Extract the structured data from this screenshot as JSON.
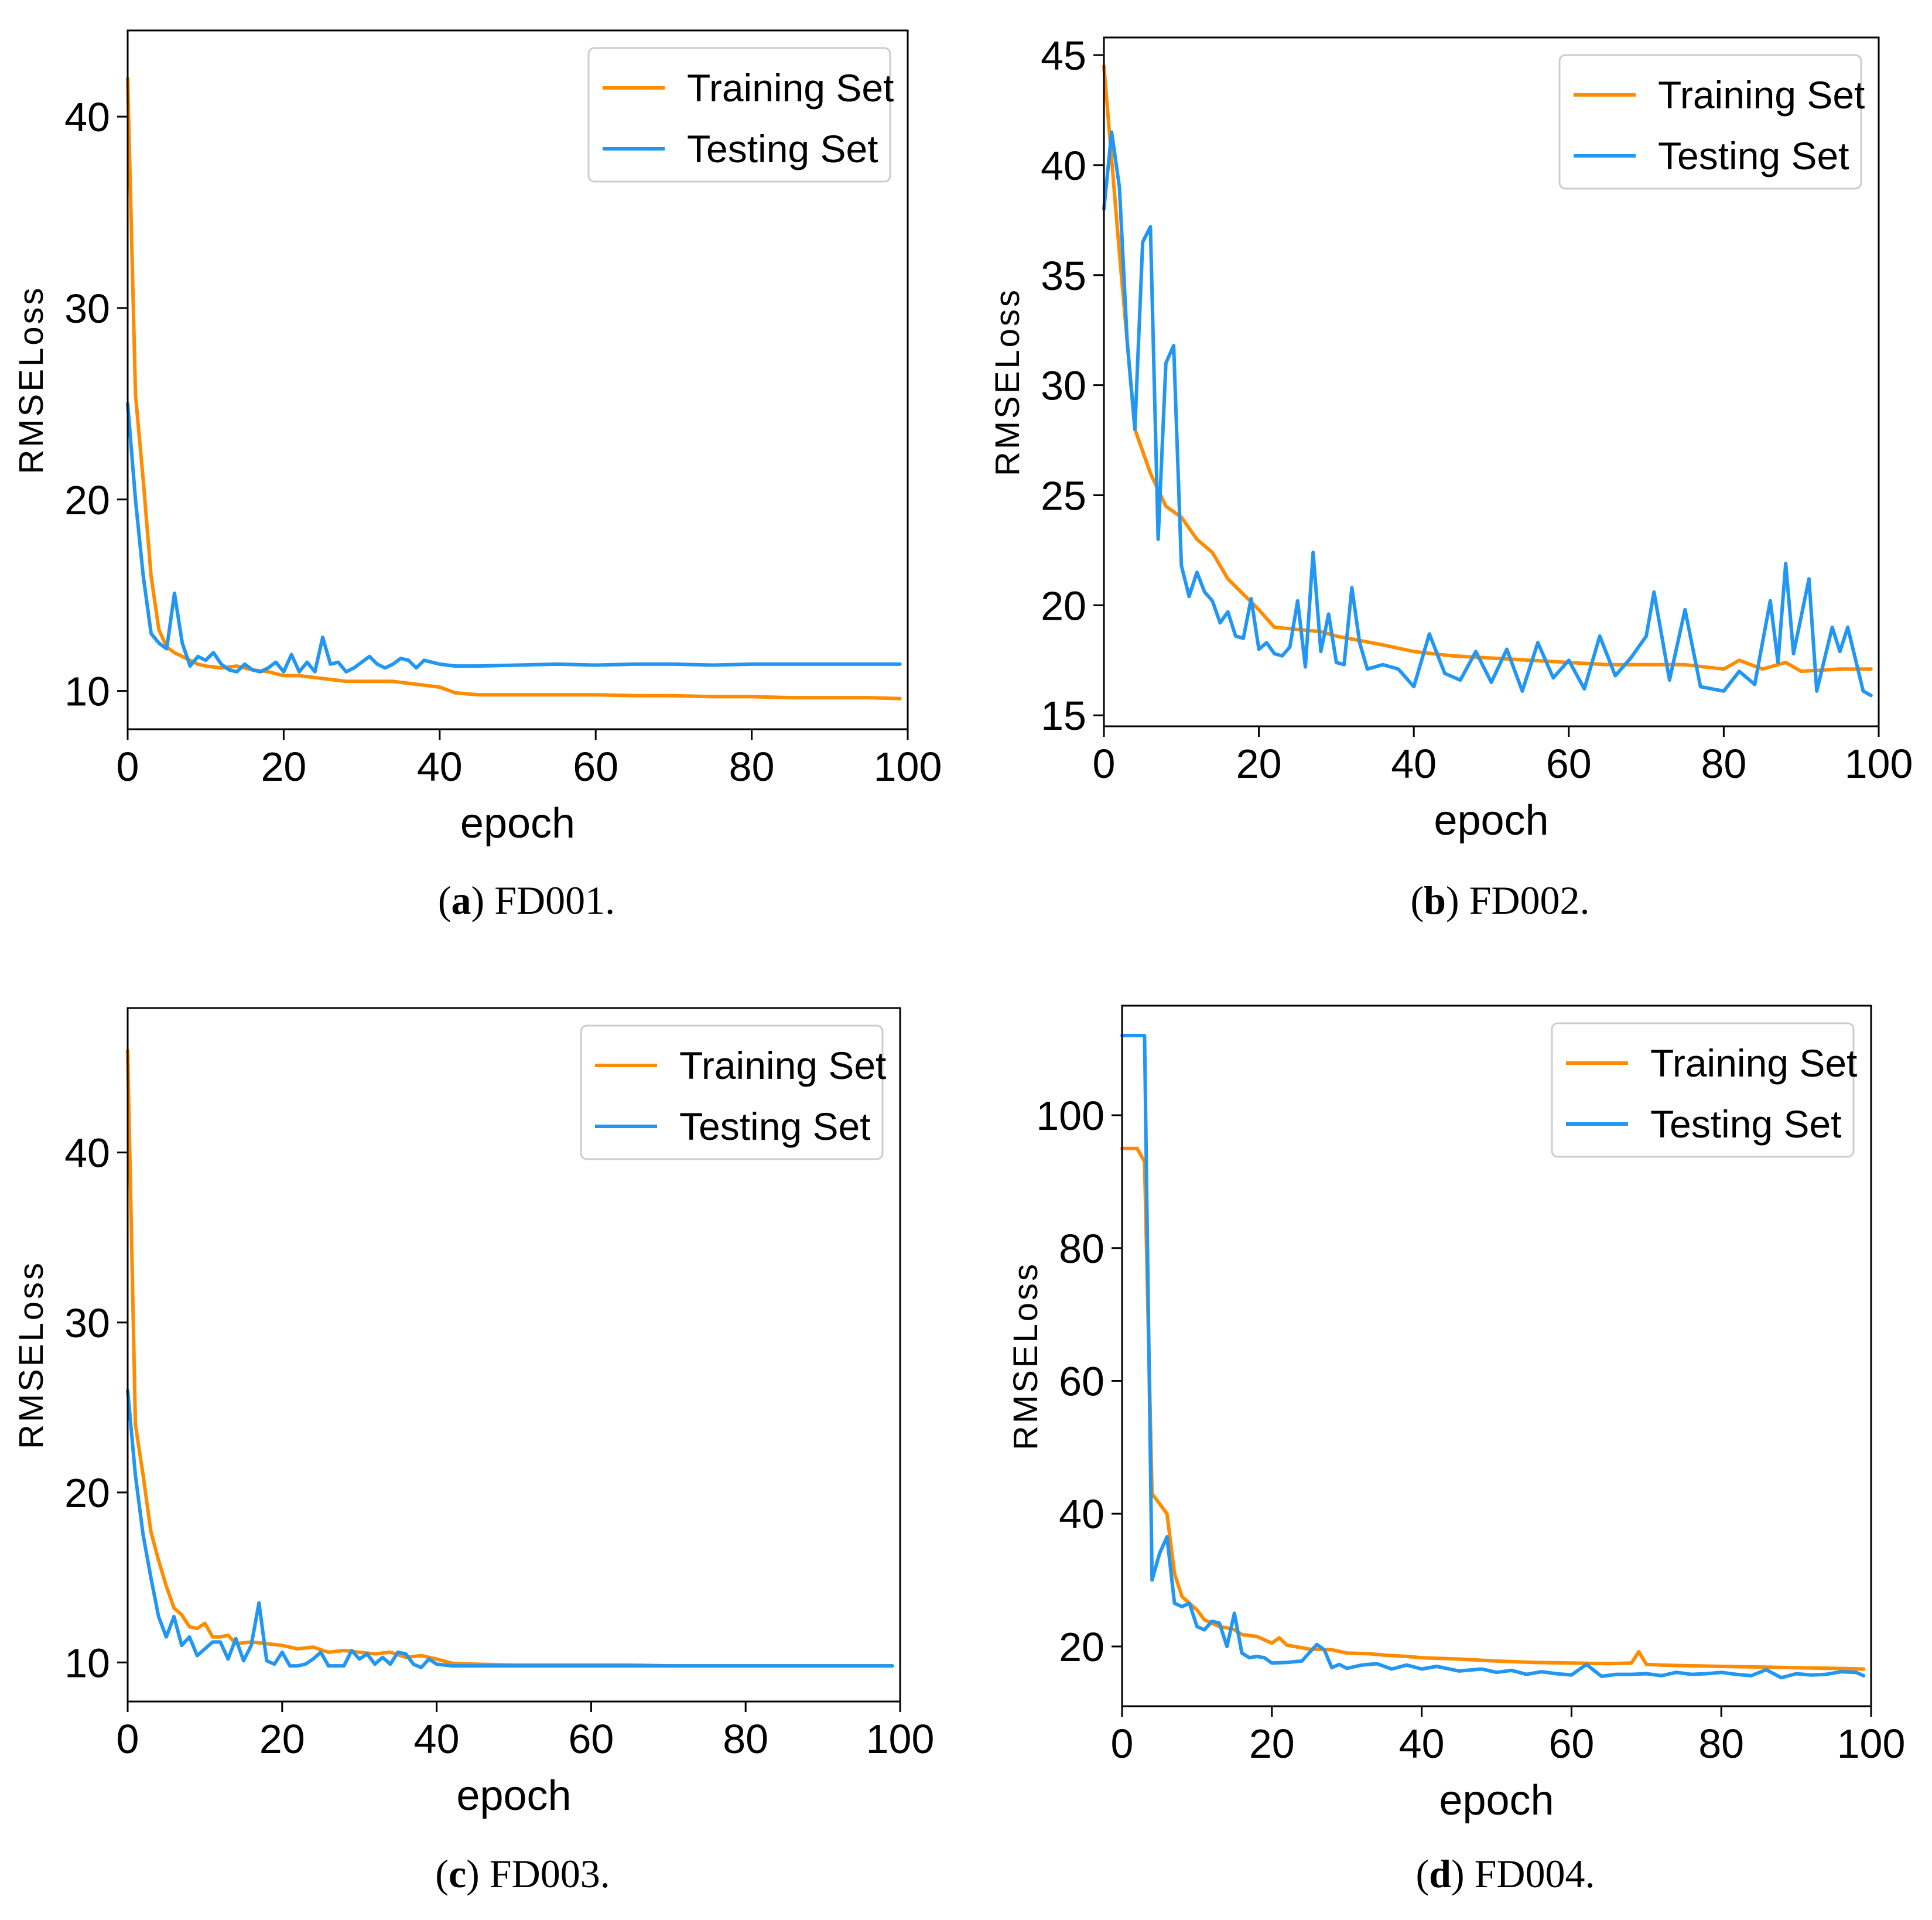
{
  "figure": {
    "panels": [
      {
        "letter": "a",
        "name": "FD001."
      },
      {
        "letter": "b",
        "name": "FD002."
      },
      {
        "letter": "c",
        "name": "FD003."
      },
      {
        "letter": "d",
        "name": "FD004."
      }
    ]
  },
  "chart_data": [
    {
      "type": "line",
      "panel": "a",
      "caption_letter": "a",
      "caption_name": "FD001.",
      "xlabel": "epoch",
      "ylabel": "RMSELoss",
      "xlim": [
        0,
        100
      ],
      "ylim": [
        8,
        44.5
      ],
      "xticks": [
        0,
        20,
        40,
        60,
        80,
        100
      ],
      "yticks": [
        10,
        20,
        30,
        40
      ],
      "legend": "top-right",
      "series": [
        {
          "name": "Training Set",
          "color": "#ff8c00",
          "x": [
            0,
            1,
            2,
            3,
            4,
            5,
            6,
            7,
            8,
            9,
            10,
            12,
            14,
            16,
            18,
            20,
            22,
            24,
            26,
            28,
            30,
            32,
            34,
            36,
            38,
            40,
            42,
            45,
            50,
            55,
            60,
            65,
            70,
            75,
            80,
            85,
            90,
            95,
            99
          ],
          "y": [
            42,
            25.5,
            21,
            16,
            13.2,
            12.3,
            12,
            11.8,
            11.6,
            11.4,
            11.3,
            11.2,
            11.3,
            11.1,
            11,
            10.8,
            10.8,
            10.7,
            10.6,
            10.5,
            10.5,
            10.5,
            10.5,
            10.4,
            10.3,
            10.2,
            9.9,
            9.8,
            9.8,
            9.8,
            9.8,
            9.75,
            9.75,
            9.7,
            9.7,
            9.65,
            9.65,
            9.65,
            9.6
          ]
        },
        {
          "name": "Testing Set",
          "color": "#2196f3",
          "x": [
            0,
            1,
            2,
            3,
            4,
            5,
            6,
            7,
            8,
            9,
            10,
            11,
            12,
            13,
            14,
            15,
            16,
            17,
            18,
            19,
            20,
            21,
            22,
            23,
            24,
            25,
            26,
            27,
            28,
            29,
            30,
            31,
            32,
            33,
            34,
            35,
            36,
            37,
            38,
            39,
            40,
            42,
            45,
            50,
            55,
            60,
            65,
            70,
            75,
            80,
            85,
            90,
            95,
            99
          ],
          "y": [
            25,
            20,
            16,
            13,
            12.5,
            12.2,
            15.1,
            12.5,
            11.3,
            11.8,
            11.6,
            12,
            11.4,
            11.1,
            11,
            11.4,
            11.1,
            11,
            11.2,
            11.5,
            11,
            11.9,
            11,
            11.5,
            11,
            12.8,
            11.4,
            11.5,
            11,
            11.2,
            11.5,
            11.8,
            11.4,
            11.2,
            11.4,
            11.7,
            11.6,
            11.2,
            11.6,
            11.5,
            11.4,
            11.3,
            11.3,
            11.35,
            11.4,
            11.35,
            11.4,
            11.4,
            11.35,
            11.4,
            11.4,
            11.4,
            11.4,
            11.4
          ]
        }
      ]
    },
    {
      "type": "line",
      "panel": "b",
      "caption_letter": "b",
      "caption_name": "FD002.",
      "xlabel": "epoch",
      "ylabel": "RMSELoss",
      "xlim": [
        0,
        100
      ],
      "ylim": [
        14.5,
        45.8
      ],
      "xticks": [
        0,
        20,
        40,
        60,
        80,
        100
      ],
      "yticks": [
        15,
        20,
        25,
        30,
        35,
        40,
        45
      ],
      "legend": "top-right",
      "series": [
        {
          "name": "Training Set",
          "color": "#ff8c00",
          "x": [
            0,
            2,
            4,
            6,
            8,
            10,
            12,
            14,
            16,
            18,
            20,
            22,
            25,
            28,
            30,
            33,
            36,
            40,
            45,
            50,
            55,
            60,
            65,
            70,
            75,
            80,
            82,
            85,
            88,
            90,
            95,
            99
          ],
          "y": [
            44.5,
            36,
            28,
            26,
            24.5,
            24,
            23,
            22.4,
            21.2,
            20.5,
            19.8,
            19,
            18.9,
            18.8,
            18.6,
            18.4,
            18.2,
            17.9,
            17.7,
            17.6,
            17.5,
            17.4,
            17.3,
            17.3,
            17.3,
            17.1,
            17.5,
            17.1,
            17.4,
            17,
            17.1,
            17.1
          ]
        },
        {
          "name": "Testing Set",
          "color": "#2196f3",
          "x": [
            0,
            1,
            2,
            3,
            4,
            5,
            6,
            7,
            8,
            9,
            10,
            11,
            12,
            13,
            14,
            15,
            16,
            17,
            18,
            19,
            20,
            21,
            22,
            23,
            24,
            25,
            26,
            27,
            28,
            29,
            30,
            31,
            32,
            33,
            34,
            36,
            38,
            40,
            42,
            44,
            46,
            48,
            50,
            52,
            54,
            56,
            58,
            60,
            62,
            64,
            66,
            68,
            70,
            71,
            73,
            75,
            77,
            80,
            82,
            84,
            86,
            87,
            88,
            89,
            91,
            92,
            94,
            95,
            96,
            98,
            99
          ],
          "y": [
            38,
            41.5,
            39,
            32,
            28,
            36.5,
            37.2,
            23,
            31,
            31.8,
            21.8,
            20.4,
            21.5,
            20.6,
            20.2,
            19.2,
            19.7,
            18.6,
            18.5,
            20.3,
            18,
            18.3,
            17.8,
            17.7,
            18.1,
            20.2,
            17.2,
            22.4,
            17.9,
            19.6,
            17.4,
            17.3,
            20.8,
            18.3,
            17.1,
            17.3,
            17.1,
            16.3,
            18.7,
            16.9,
            16.6,
            17.9,
            16.5,
            18,
            16.1,
            18.3,
            16.7,
            17.5,
            16.2,
            18.6,
            16.8,
            17.6,
            18.6,
            20.6,
            16.6,
            19.8,
            16.3,
            16.1,
            17,
            16.4,
            20.2,
            17.4,
            21.9,
            17.8,
            21.2,
            16.1,
            19,
            17.9,
            19,
            16.1,
            15.9
          ]
        }
      ]
    },
    {
      "type": "line",
      "panel": "c",
      "caption_letter": "c",
      "caption_name": "FD003.",
      "xlabel": "epoch",
      "ylabel": "RMSELoss",
      "xlim": [
        0,
        100
      ],
      "ylim": [
        7.7,
        48.5
      ],
      "xticks": [
        0,
        20,
        40,
        60,
        80,
        100
      ],
      "yticks": [
        10,
        20,
        30,
        40
      ],
      "legend": "top-right",
      "series": [
        {
          "name": "Training Set",
          "color": "#ff8c00",
          "x": [
            0,
            1,
            2,
            3,
            4,
            5,
            6,
            7,
            8,
            9,
            10,
            11,
            12,
            13,
            14,
            16,
            18,
            20,
            22,
            24,
            26,
            28,
            30,
            32,
            34,
            36,
            38,
            40,
            42,
            45,
            50,
            55,
            60,
            65,
            70,
            75,
            80,
            85,
            90,
            95,
            99
          ],
          "y": [
            46,
            24,
            21,
            17.7,
            16,
            14.5,
            13.2,
            12.8,
            12.1,
            12,
            12.3,
            11.5,
            11.5,
            11.6,
            11.1,
            11.2,
            11.1,
            11,
            10.8,
            10.9,
            10.6,
            10.7,
            10.6,
            10.5,
            10.6,
            10.3,
            10.4,
            10.2,
            9.95,
            9.9,
            9.85,
            9.85,
            9.85,
            9.85,
            9.8,
            9.8,
            9.8,
            9.8,
            9.8,
            9.8,
            9.8
          ]
        },
        {
          "name": "Testing Set",
          "color": "#2196f3",
          "x": [
            0,
            1,
            2,
            3,
            4,
            5,
            6,
            7,
            8,
            9,
            10,
            11,
            12,
            13,
            14,
            15,
            16,
            17,
            18,
            19,
            20,
            21,
            22,
            23,
            24,
            25,
            26,
            27,
            28,
            29,
            30,
            31,
            32,
            33,
            34,
            35,
            36,
            37,
            38,
            39,
            40,
            42,
            45,
            50,
            55,
            60,
            65,
            70,
            75,
            80,
            85,
            90,
            95,
            99
          ],
          "y": [
            26,
            21,
            17.5,
            15,
            12.7,
            11.5,
            12.7,
            11,
            11.5,
            10.4,
            10.8,
            11.2,
            11.2,
            10.2,
            11.4,
            10.1,
            11,
            13.5,
            10.1,
            9.9,
            10.6,
            9.8,
            9.8,
            9.9,
            10.2,
            10.6,
            9.8,
            9.8,
            9.8,
            10.7,
            10.2,
            10.5,
            9.9,
            10.3,
            9.9,
            10.6,
            10.5,
            9.9,
            9.7,
            10.2,
            9.9,
            9.8,
            9.8,
            9.8,
            9.8,
            9.8,
            9.8,
            9.8,
            9.8,
            9.8,
            9.8,
            9.8,
            9.8,
            9.8
          ]
        }
      ]
    },
    {
      "type": "line",
      "panel": "d",
      "caption_letter": "d",
      "caption_name": "FD004.",
      "xlabel": "epoch",
      "ylabel": "RMSELoss",
      "xlim": [
        0,
        100
      ],
      "ylim": [
        11,
        116.5
      ],
      "xticks": [
        0,
        20,
        40,
        60,
        80,
        100
      ],
      "yticks": [
        20,
        40,
        60,
        80,
        100
      ],
      "legend": "top-right",
      "series": [
        {
          "name": "Training Set",
          "color": "#ff8c00",
          "x": [
            0,
            1,
            2,
            3,
            4,
            5,
            6,
            7,
            8,
            9,
            10,
            11,
            12,
            13,
            14,
            15,
            16,
            18,
            20,
            21,
            22,
            25,
            28,
            30,
            33,
            35,
            38,
            40,
            45,
            50,
            55,
            60,
            65,
            68,
            69,
            70,
            72,
            75,
            80,
            85,
            90,
            95,
            99
          ],
          "y": [
            95,
            95,
            95,
            93,
            43,
            41.5,
            40,
            31,
            27.5,
            26.5,
            25.5,
            24,
            23.5,
            23,
            22.8,
            22.5,
            21.8,
            21.5,
            20.5,
            21.3,
            20.2,
            19.6,
            19.5,
            19,
            18.9,
            18.7,
            18.5,
            18.3,
            18.1,
            17.8,
            17.6,
            17.5,
            17.4,
            17.5,
            19.2,
            17.3,
            17.2,
            17.1,
            17,
            16.9,
            16.8,
            16.7,
            16.6
          ]
        },
        {
          "name": "Testing Set",
          "color": "#2196f3",
          "x": [
            0,
            1,
            2,
            3,
            4,
            5,
            6,
            7,
            8,
            9,
            10,
            11,
            12,
            13,
            14,
            15,
            16,
            17,
            18,
            19,
            20,
            22,
            24,
            26,
            27,
            28,
            29,
            30,
            32,
            34,
            36,
            38,
            40,
            42,
            45,
            48,
            50,
            52,
            54,
            56,
            58,
            60,
            62,
            64,
            66,
            68,
            70,
            72,
            74,
            76,
            78,
            80,
            82,
            84,
            86,
            88,
            90,
            92,
            94,
            96,
            98,
            99
          ],
          "y": [
            112,
            112,
            112,
            112,
            30,
            34,
            36.5,
            26.5,
            26,
            26.5,
            23,
            22.5,
            23.8,
            23.5,
            20,
            25,
            19,
            18.3,
            18.5,
            18.3,
            17.5,
            17.6,
            17.8,
            20.3,
            19.5,
            16.8,
            17.3,
            16.7,
            17.2,
            17.4,
            16.6,
            17.2,
            16.6,
            17,
            16.3,
            16.6,
            16.1,
            16.4,
            15.8,
            16.2,
            15.9,
            15.7,
            17.3,
            15.5,
            15.8,
            15.8,
            15.9,
            15.6,
            16.1,
            15.8,
            15.9,
            16.1,
            15.8,
            15.6,
            16.5,
            15.3,
            15.9,
            15.7,
            15.8,
            16.2,
            16.1,
            15.6
          ]
        }
      ]
    }
  ]
}
